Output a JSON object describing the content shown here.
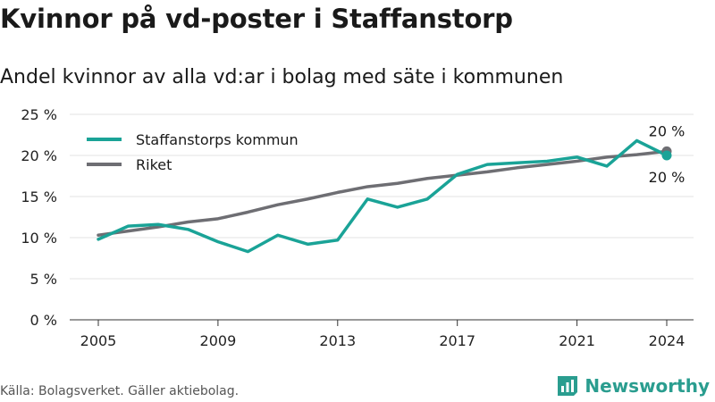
{
  "title": "Kvinnor på vd-poster i Staffanstorp",
  "subtitle": "Andel kvinnor av alla vd:ar i bolag med säte i kommunen",
  "source": "Källa: Bolagsverket. Gäller aktiebolag.",
  "brand": "Newsworthy",
  "colors": {
    "staffanstorp": "#1aa397",
    "riket": "#6e6e73",
    "grid": "#e3e3e3",
    "axis": "#333333",
    "brand": "#2a9d8f"
  },
  "chart_data": {
    "type": "line",
    "title": "Kvinnor på vd-poster i Staffanstorp",
    "subtitle": "Andel kvinnor av alla vd:ar i bolag med säte i kommunen",
    "xlabel": "",
    "ylabel": "",
    "xlim": [
      2005,
      2024
    ],
    "ylim": [
      0,
      25
    ],
    "y_ticks": [
      0,
      5,
      10,
      15,
      20,
      25
    ],
    "y_tick_labels": [
      "0 %",
      "5 %",
      "10 %",
      "15 %",
      "20 %",
      "25 %"
    ],
    "x_ticks": [
      2005,
      2009,
      2013,
      2017,
      2021,
      2024
    ],
    "x_tick_labels": [
      "2005",
      "2009",
      "2013",
      "2017",
      "2021",
      "2024"
    ],
    "grid": true,
    "legend_position": "top-left",
    "x": [
      2005,
      2006,
      2007,
      2008,
      2009,
      2010,
      2011,
      2012,
      2013,
      2014,
      2015,
      2016,
      2017,
      2018,
      2019,
      2020,
      2021,
      2022,
      2023,
      2024
    ],
    "series": [
      {
        "name": "Staffanstorps kommun",
        "values": [
          9.8,
          11.4,
          11.6,
          11.0,
          9.5,
          8.3,
          10.3,
          9.2,
          9.7,
          14.7,
          13.7,
          14.7,
          17.7,
          18.9,
          19.1,
          19.3,
          19.8,
          18.7,
          21.8,
          20.0
        ],
        "end_label": "20 %"
      },
      {
        "name": "Riket",
        "values": [
          10.3,
          10.8,
          11.3,
          11.9,
          12.3,
          13.1,
          14.0,
          14.7,
          15.5,
          16.2,
          16.6,
          17.2,
          17.6,
          18.0,
          18.5,
          18.9,
          19.3,
          19.8,
          20.1,
          20.5
        ],
        "end_label": "20 %"
      }
    ]
  }
}
